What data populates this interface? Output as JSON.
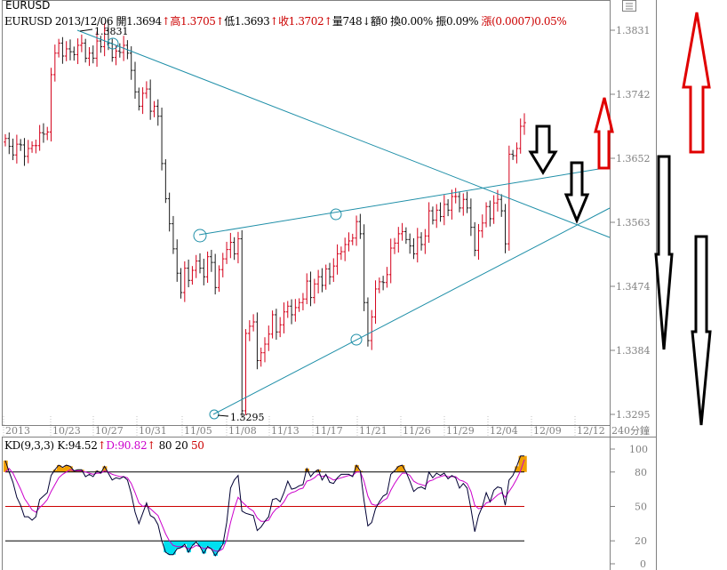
{
  "title": "EURUSD",
  "info": {
    "symbol": "EURUSD",
    "date": "2013/12/06",
    "open_label": "開",
    "open": "1.3694",
    "high_label": "高",
    "high": "1.3705",
    "low_label": "低",
    "low": "1.3693",
    "close_label": "收",
    "close": "1.3702",
    "volume_label": "量",
    "volume": "748",
    "amount_label": "額",
    "amount": "0",
    "turnover_label": "換",
    "turnover": "0.00%",
    "amplitude_label": "振",
    "amplitude": "0.09%",
    "change_label": "漲",
    "change": "(0.0007)",
    "change_pct": "0.05%",
    "arrow_up": "↑",
    "arrow_down": "↓"
  },
  "kd": {
    "name": "KD(9,3,3)",
    "k_label": "K:",
    "k_value": "94.52",
    "d_label": "D:",
    "d_value": "90.82",
    "arrow": "↑",
    "levels_text": "80 20",
    "mid_text": "50"
  },
  "period_label": "240分鐘",
  "annotations": {
    "high_label": "1.3831",
    "low_label": "1.3295"
  },
  "colors": {
    "candle_up": "#d4001a",
    "candle_down": "#1a1a1a",
    "trendline": "#1f8fa8",
    "k_line": "#000033",
    "d_line": "#cc00cc",
    "overbought_fill": "#f0a000",
    "oversold_fill": "#00e0f0",
    "arrow_up": "#e00000",
    "arrow_down": "#000000"
  },
  "chart_data": [
    {
      "type": "candlestick",
      "title": "EURUSD",
      "y_ticks": [
        "1.3831",
        "1.3742",
        "1.3652",
        "1.3563",
        "1.3474",
        "1.3384",
        "1.3295"
      ],
      "ylim": [
        1.3265,
        1.386
      ],
      "x_ticks": [
        "2013",
        "10/23",
        "10/27",
        "10/31",
        "11/05",
        "11/08",
        "11/13",
        "11/17",
        "11/21",
        "11/26",
        "11/29",
        "12/04",
        "12/09",
        "12/12"
      ],
      "series": [
        {
          "values": [
            1.368,
            1.3669,
            1.3657,
            1.3672,
            1.3671,
            1.3655,
            1.3666,
            1.367,
            1.367,
            1.3688,
            1.3686,
            1.3689,
            1.3769,
            1.3799,
            1.3813,
            1.3795,
            1.3805,
            1.3801,
            1.3797,
            1.381,
            1.3813,
            1.3792,
            1.3799,
            1.3792,
            1.3816,
            1.3808,
            1.3831,
            1.3813,
            1.3793,
            1.3802,
            1.38,
            1.381,
            1.3799,
            1.3775,
            1.3745,
            1.3725,
            1.3743,
            1.3749,
            1.3718,
            1.3725,
            1.3711,
            1.3645,
            1.3596,
            1.3561,
            1.3526,
            1.3492,
            1.3465,
            1.3499,
            1.3482,
            1.3496,
            1.3509,
            1.3499,
            1.3487,
            1.3515,
            1.3507,
            1.3472,
            1.3497,
            1.3512,
            1.3525,
            1.3535,
            1.3519,
            1.354,
            1.33,
            1.3408,
            1.3418,
            1.3424,
            1.337,
            1.3381,
            1.3393,
            1.3407,
            1.3434,
            1.341,
            1.342,
            1.3438,
            1.3446,
            1.3434,
            1.3444,
            1.3451,
            1.3456,
            1.3481,
            1.3458,
            1.3477,
            1.3487,
            1.3475,
            1.3498,
            1.3487,
            1.3502,
            1.3519,
            1.3522,
            1.3532,
            1.3537,
            1.3541,
            1.3564,
            1.3547,
            1.3451,
            1.3398,
            1.3431,
            1.347,
            1.348,
            1.3479,
            1.349,
            1.3527,
            1.3534,
            1.3547,
            1.355,
            1.3539,
            1.353,
            1.3519,
            1.3542,
            1.3532,
            1.3544,
            1.3579,
            1.3566,
            1.358,
            1.3571,
            1.3588,
            1.358,
            1.3599,
            1.3599,
            1.3583,
            1.3595,
            1.3583,
            1.3556,
            1.3524,
            1.3551,
            1.3562,
            1.3585,
            1.3568,
            1.359,
            1.3595,
            1.3579,
            1.3533,
            1.3658,
            1.3656,
            1.3666,
            1.3697,
            1.3702
          ]
        }
      ],
      "annotations": [
        "1.3831",
        "1.3295"
      ]
    },
    {
      "type": "line",
      "title": "KD(9,3,3)",
      "y_ticks": [
        "100",
        "80",
        "50",
        "20",
        "0"
      ],
      "ylim": [
        0,
        100
      ],
      "series": [
        {
          "name": "K",
          "values": [
            90,
            80,
            71,
            58,
            51,
            41,
            41,
            38,
            41,
            56,
            59,
            62,
            77,
            82,
            86,
            84,
            86,
            85,
            81,
            82,
            82,
            76,
            78,
            76,
            81,
            79,
            85,
            79,
            73,
            75,
            74,
            76,
            73,
            61,
            45,
            35,
            44,
            53,
            42,
            40,
            34,
            20,
            10,
            8,
            8,
            13,
            14,
            17,
            10,
            16,
            19,
            15,
            9,
            15,
            13,
            7,
            12,
            17,
            36,
            66,
            73,
            77,
            46,
            44,
            43,
            42,
            29,
            32,
            37,
            41,
            56,
            57,
            54,
            62,
            72,
            65,
            66,
            68,
            69,
            83,
            76,
            80,
            82,
            73,
            78,
            71,
            70,
            75,
            78,
            78,
            78,
            76,
            86,
            81,
            55,
            33,
            36,
            48,
            54,
            59,
            61,
            78,
            81,
            85,
            86,
            80,
            72,
            63,
            66,
            67,
            65,
            80,
            75,
            79,
            77,
            79,
            74,
            77,
            75,
            66,
            70,
            66,
            48,
            28,
            42,
            50,
            62,
            54,
            64,
            67,
            66,
            51,
            73,
            77,
            85,
            94,
            94
          ]
        },
        {
          "name": "D",
          "values": [
            80,
            83,
            79,
            72,
            65,
            57,
            52,
            47,
            45,
            49,
            52,
            56,
            63,
            69,
            75,
            78,
            80,
            82,
            81,
            81,
            81,
            80,
            79,
            78,
            79,
            79,
            81,
            80,
            78,
            77,
            76,
            76,
            75,
            70,
            62,
            53,
            50,
            51,
            48,
            45,
            42,
            34,
            26,
            20,
            16,
            15,
            15,
            15,
            13,
            14,
            16,
            15,
            13,
            14,
            13,
            11,
            11,
            13,
            21,
            36,
            48,
            58,
            54,
            51,
            48,
            46,
            40,
            37,
            37,
            38,
            44,
            48,
            50,
            54,
            60,
            62,
            63,
            65,
            66,
            72,
            73,
            75,
            78,
            76,
            77,
            75,
            73,
            74,
            75,
            76,
            77,
            77,
            80,
            80,
            72,
            59,
            52,
            51,
            52,
            55,
            57,
            64,
            70,
            75,
            79,
            79,
            77,
            72,
            70,
            69,
            68,
            72,
            73,
            75,
            76,
            77,
            76,
            76,
            76,
            73,
            72,
            70,
            63,
            51,
            48,
            49,
            53,
            54,
            57,
            60,
            62,
            58,
            63,
            68,
            74,
            81,
            90.82
          ]
        }
      ]
    }
  ]
}
